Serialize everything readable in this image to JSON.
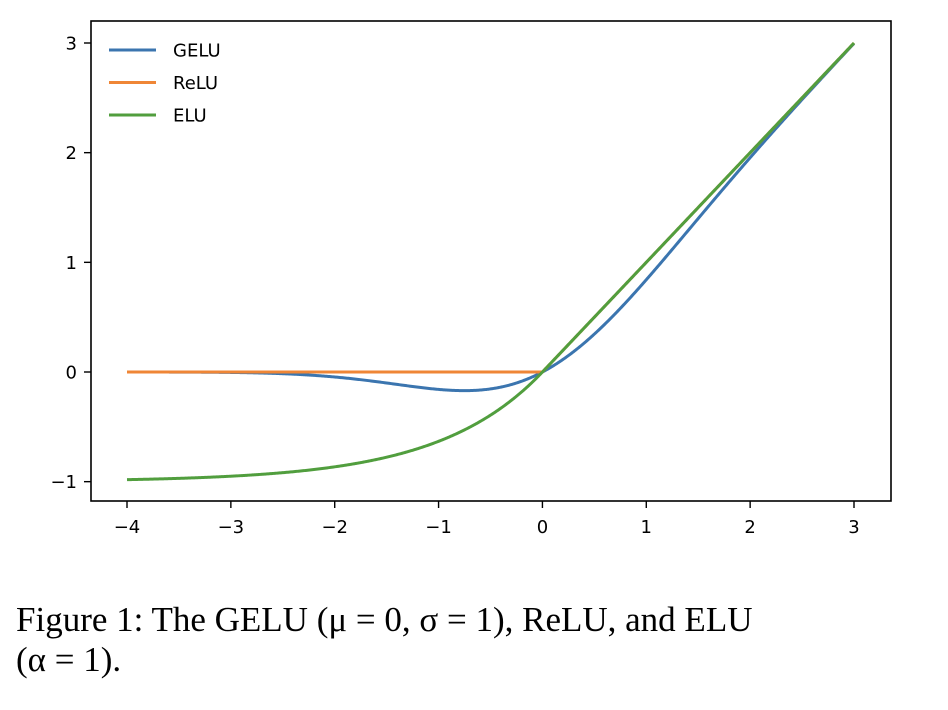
{
  "chart_data": {
    "type": "line",
    "title": "",
    "xlabel": "",
    "ylabel": "",
    "xlim": [
      -4.35,
      3.35
    ],
    "ylim": [
      -1.2,
      3.2
    ],
    "x_ticks": [
      -4,
      -3,
      -2,
      -1,
      0,
      1,
      2,
      3
    ],
    "x_tick_labels": [
      "−4",
      "−3",
      "−2",
      "−1",
      "0",
      "1",
      "2",
      "3"
    ],
    "y_ticks": [
      -1,
      0,
      1,
      2,
      3
    ],
    "y_tick_labels": [
      "−1",
      "0",
      "1",
      "2",
      "3"
    ],
    "grid": false,
    "legend_position": "upper left",
    "x_range": [
      -4,
      3
    ],
    "series": [
      {
        "name": "GELU",
        "color": "#3b75af",
        "function": "x * Phi(x)",
        "x": [
          -4,
          -3,
          -2,
          -1.5,
          -1,
          -0.75,
          -0.5,
          0,
          0.5,
          1,
          1.5,
          2,
          3
        ],
        "values": [
          -0.0001,
          -0.004,
          -0.045,
          -0.1,
          -0.159,
          -0.17,
          -0.154,
          0,
          0.346,
          0.841,
          1.4,
          1.955,
          2.996
        ]
      },
      {
        "name": "ReLU",
        "color": "#ef8636",
        "function": "max(0, x)",
        "x": [
          -4,
          0,
          3
        ],
        "values": [
          0,
          0,
          3
        ]
      },
      {
        "name": "ELU",
        "color": "#519e3e",
        "function": "x if x>0 else exp(x)-1",
        "x": [
          -4,
          -3,
          -2,
          -1,
          -0.5,
          0,
          1,
          2,
          3
        ],
        "values": [
          -0.982,
          -0.95,
          -0.865,
          -0.632,
          -0.393,
          0,
          1,
          2,
          3
        ]
      }
    ]
  },
  "legend": {
    "items": [
      {
        "label": "GELU",
        "color": "#3b75af"
      },
      {
        "label": "ReLU",
        "color": "#ef8636"
      },
      {
        "label": "ELU",
        "color": "#519e3e"
      }
    ]
  },
  "caption": {
    "line1": "Figure 1: The GELU (μ = 0, σ = 1), ReLU, and ELU",
    "line2": "(α = 1)."
  }
}
